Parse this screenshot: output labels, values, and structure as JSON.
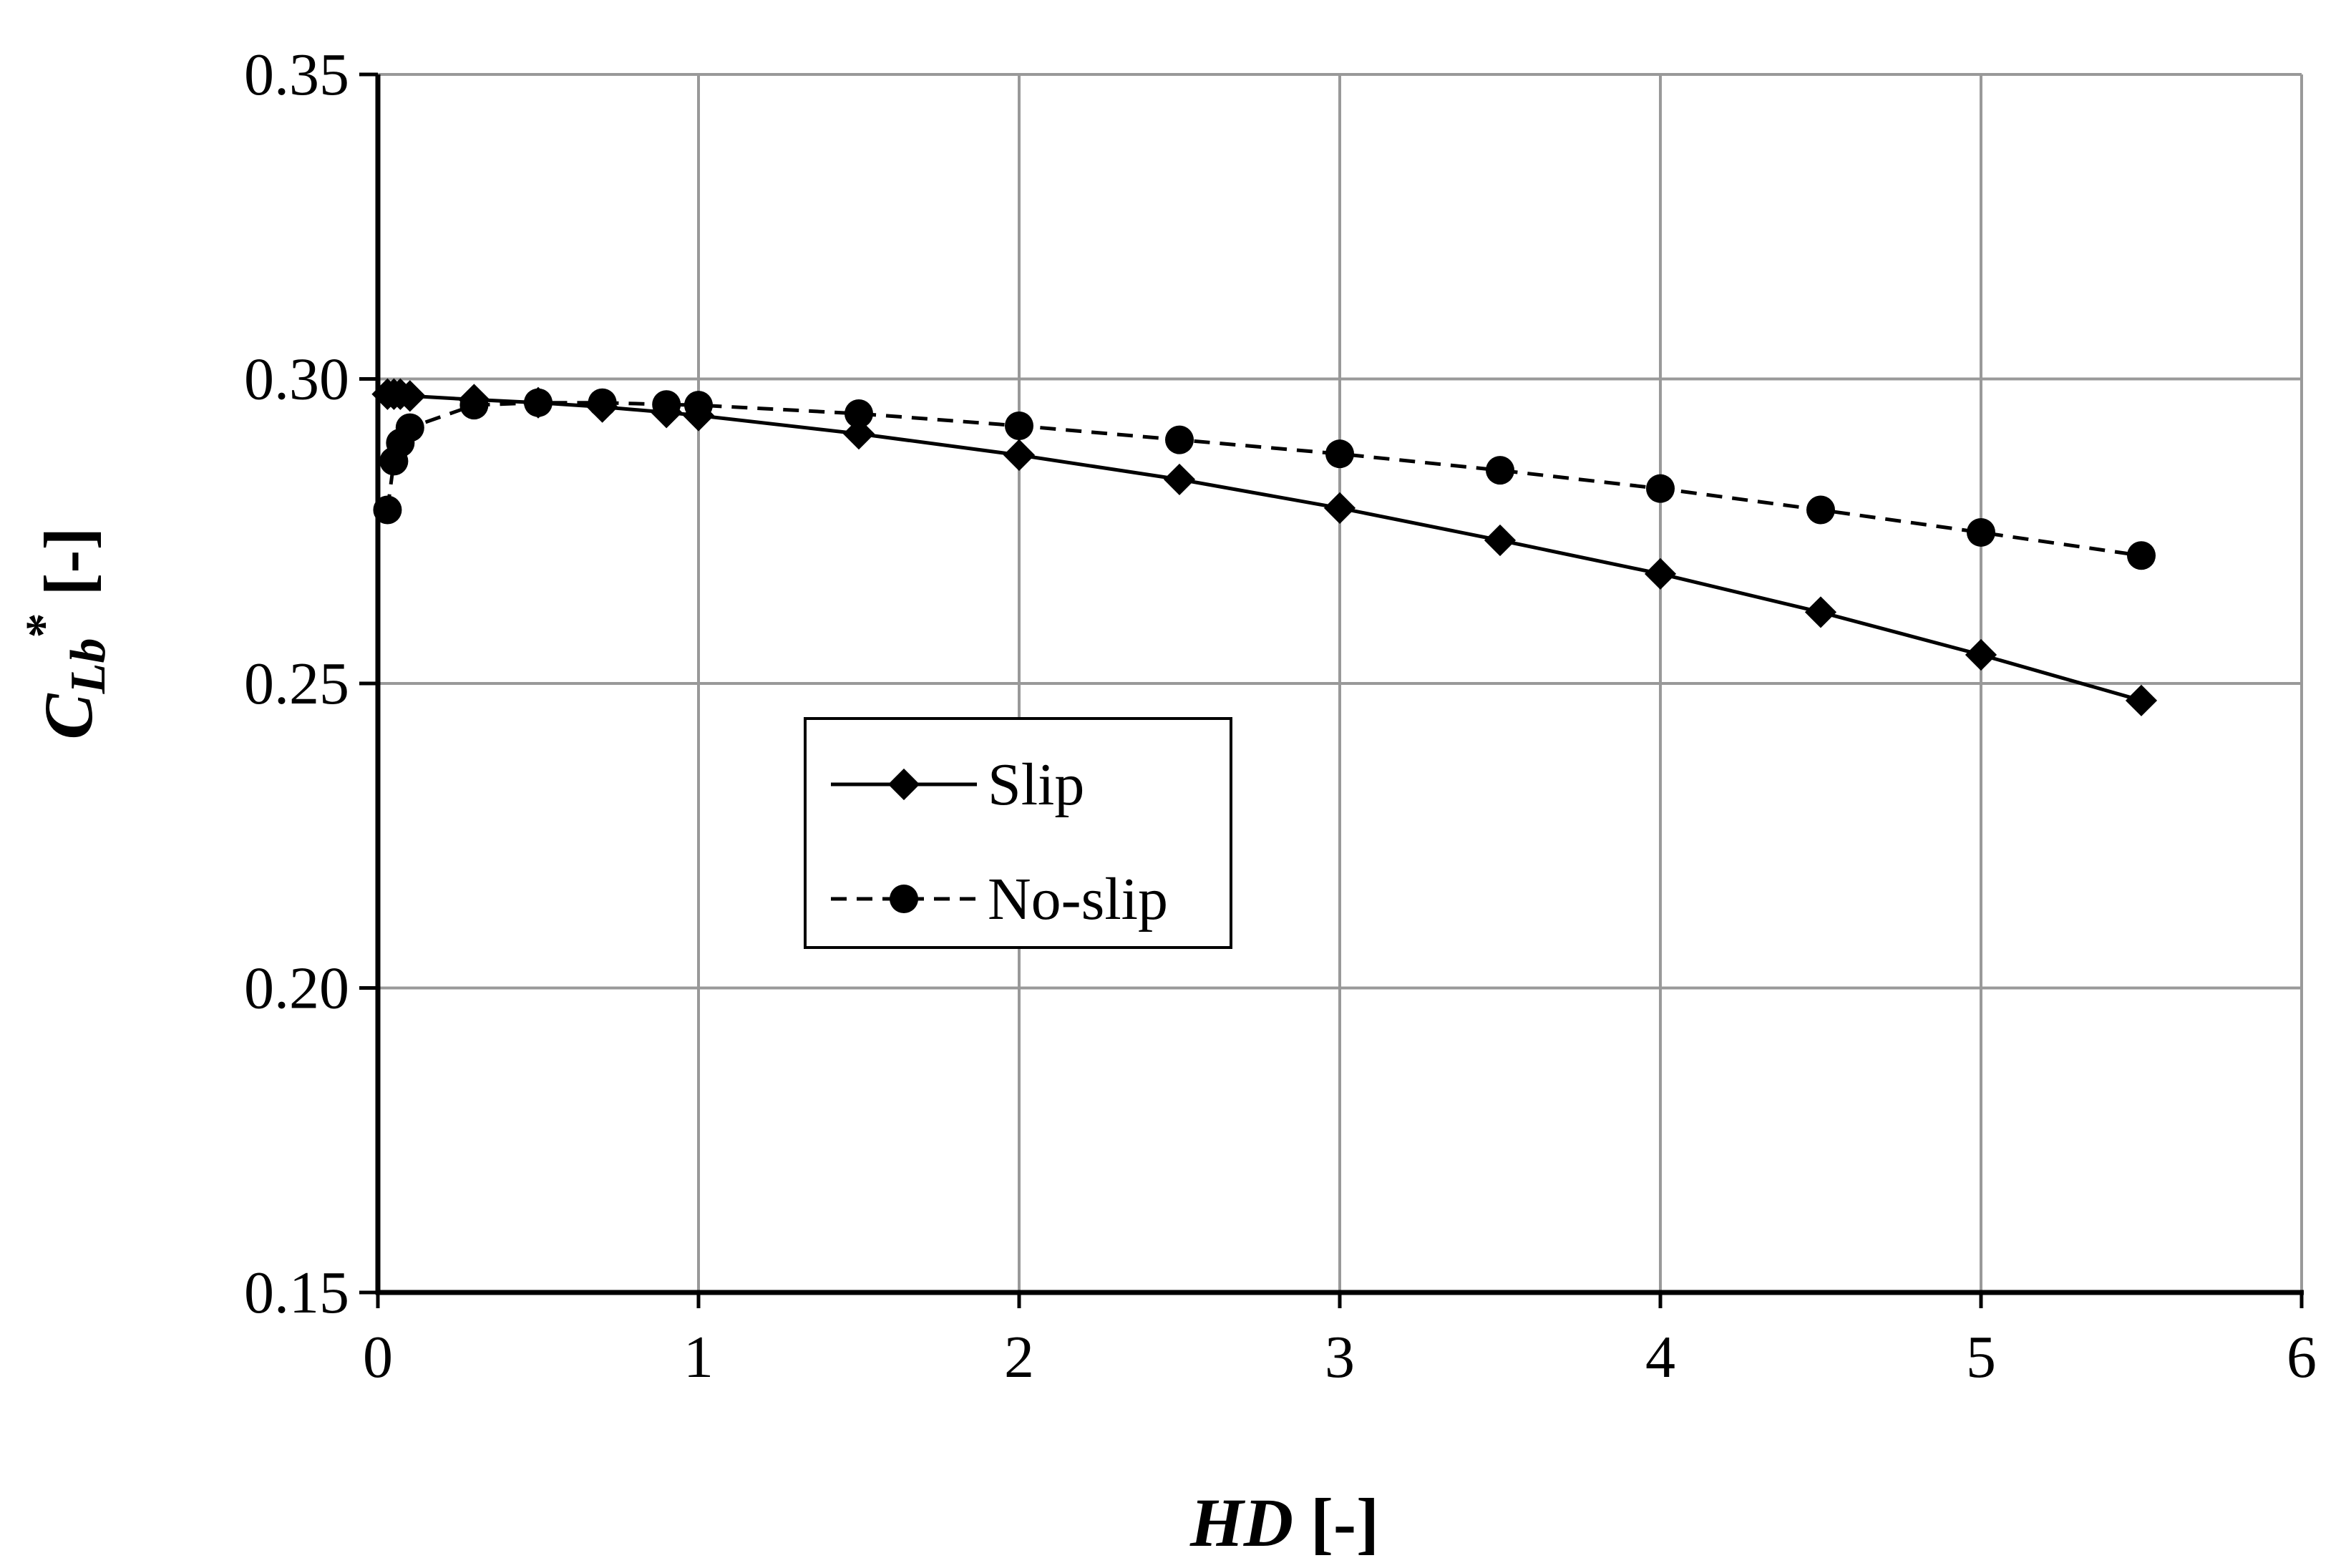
{
  "chart_data": {
    "type": "line",
    "xlabel": "HD [-]",
    "xlabel_main": "HD",
    "xlabel_unit": " [-]",
    "ylabel": "C_Lb* [-]",
    "ylabel_main": "C",
    "ylabel_sub": "Lb",
    "ylabel_sup": "*",
    "ylabel_unit": " [-]",
    "xlim": [
      0,
      6
    ],
    "ylim": [
      0.15,
      0.35
    ],
    "xticks": [
      "0",
      "1",
      "2",
      "3",
      "4",
      "5",
      "6"
    ],
    "yticks": [
      "0.15",
      "0.20",
      "0.25",
      "0.30",
      "0.35"
    ],
    "grid": true,
    "legend": {
      "position": "center-left",
      "entries": [
        "Slip",
        "No-slip"
      ]
    },
    "colors": {
      "line": "#000000",
      "grid": "#999999",
      "axis": "#000000"
    },
    "series": [
      {
        "name": "Slip",
        "marker": "diamond",
        "linestyle": "solid",
        "x": [
          0.03,
          0.05,
          0.07,
          0.1,
          0.3,
          0.5,
          0.7,
          0.9,
          1.0,
          1.5,
          2.0,
          2.5,
          3.0,
          3.5,
          4.0,
          4.5,
          5.0,
          5.5
        ],
        "y": [
          0.2975,
          0.2975,
          0.2975,
          0.2972,
          0.2966,
          0.2961,
          0.2954,
          0.2945,
          0.294,
          0.291,
          0.2875,
          0.2835,
          0.2788,
          0.2735,
          0.268,
          0.2617,
          0.2547,
          0.2472
        ]
      },
      {
        "name": "No-slip",
        "marker": "circle",
        "linestyle": "dashed",
        "x": [
          0.03,
          0.05,
          0.07,
          0.1,
          0.3,
          0.5,
          0.7,
          0.9,
          1.0,
          1.5,
          2.0,
          2.5,
          3.0,
          3.5,
          4.0,
          4.5,
          5.0,
          5.5
        ],
        "y": [
          0.2785,
          0.2865,
          0.2895,
          0.292,
          0.2957,
          0.2961,
          0.2961,
          0.2958,
          0.2957,
          0.2943,
          0.2923,
          0.29,
          0.2877,
          0.285,
          0.282,
          0.2785,
          0.2748,
          0.271
        ]
      }
    ]
  }
}
